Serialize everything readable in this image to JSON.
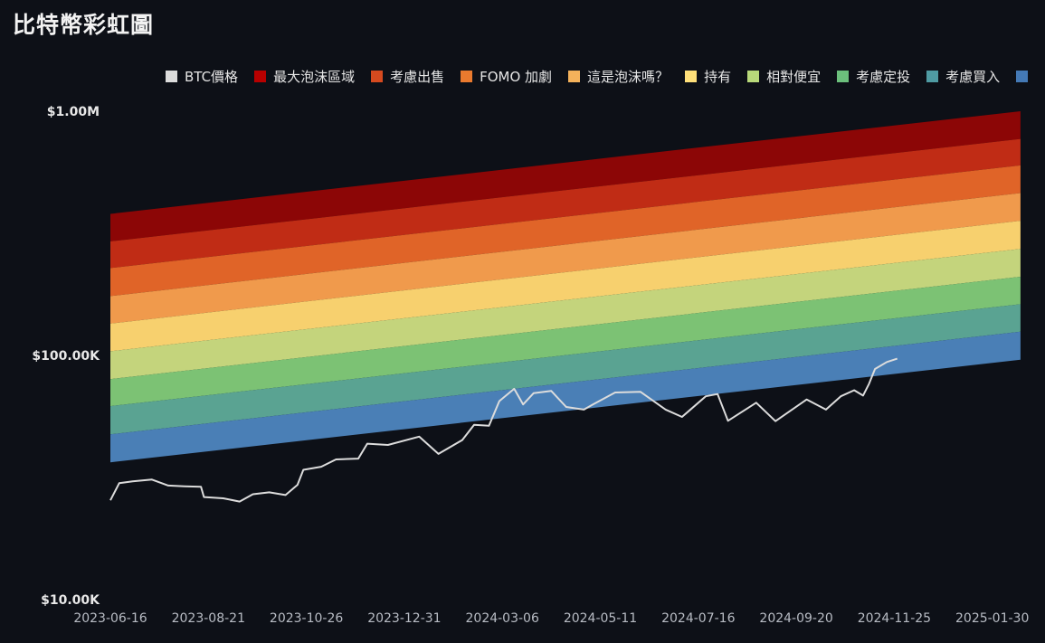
{
  "title": "比特幣彩虹圖",
  "legend": [
    {
      "label": "BTC價格",
      "color": "#dcdcdc"
    },
    {
      "label": "最大泡沫區域",
      "color": "#b80000"
    },
    {
      "label": "考慮出售",
      "color": "#d64a1f"
    },
    {
      "label": "FOMO 加劇",
      "color": "#ea7a2e"
    },
    {
      "label": "這是泡沫嗎？",
      "color": "#f4b25b"
    },
    {
      "label": "持有",
      "color": "#ffe07a"
    },
    {
      "label": "相對便宜",
      "color": "#b8d97a"
    },
    {
      "label": "考慮定投",
      "color": "#6cc07c"
    },
    {
      "label": "考慮買入",
      "color": "#4f9ba3"
    },
    {
      "label": "",
      "color": "#4479b5"
    }
  ],
  "chart_data": {
    "type": "area",
    "y_scale": "log",
    "ylim": [
      10000,
      1000000
    ],
    "y_ticks": [
      {
        "value": 1000000,
        "label": "$1.00M"
      },
      {
        "value": 100000,
        "label": "$100.00K"
      },
      {
        "value": 10000,
        "label": "$10.00K"
      }
    ],
    "x_ticks": [
      "2023-06-16",
      "2023-08-21",
      "2023-10-26",
      "2023-12-31",
      "2024-03-06",
      "2024-05-11",
      "2024-07-16",
      "2024-09-20",
      "2024-11-25",
      "2025-01-30"
    ],
    "bands": {
      "x": [
        "2023-06-16",
        "2025-02-18"
      ],
      "colors": [
        "#8c0606",
        "#c02c15",
        "#e06428",
        "#f09a4c",
        "#f7d06e",
        "#c4d47c",
        "#7cc274",
        "#5aa392",
        "#4a7fb6"
      ],
      "boundaries": [
        [
          380000,
          1000000
        ],
        [
          293000,
          770000
        ],
        [
          228000,
          600000
        ],
        [
          175000,
          462000
        ],
        [
          135000,
          356000
        ],
        [
          104000,
          273000
        ],
        [
          80000,
          210000
        ],
        [
          62000,
          162000
        ],
        [
          47500,
          125000
        ],
        [
          36500,
          96000
        ]
      ]
    },
    "series": [
      {
        "name": "BTC價格",
        "color": "#dcdcdc",
        "points": [
          [
            "2023-06-16",
            25500
          ],
          [
            "2023-06-22",
            30000
          ],
          [
            "2023-07-01",
            30500
          ],
          [
            "2023-07-14",
            31000
          ],
          [
            "2023-07-25",
            29300
          ],
          [
            "2023-08-05",
            29100
          ],
          [
            "2023-08-16",
            29000
          ],
          [
            "2023-08-18",
            26300
          ],
          [
            "2023-08-31",
            26000
          ],
          [
            "2023-09-11",
            25200
          ],
          [
            "2023-09-20",
            27000
          ],
          [
            "2023-10-01",
            27500
          ],
          [
            "2023-10-12",
            26800
          ],
          [
            "2023-10-20",
            29500
          ],
          [
            "2023-10-24",
            34000
          ],
          [
            "2023-11-05",
            35000
          ],
          [
            "2023-11-15",
            37500
          ],
          [
            "2023-11-30",
            37800
          ],
          [
            "2023-12-06",
            43500
          ],
          [
            "2023-12-20",
            43000
          ],
          [
            "2024-01-10",
            46500
          ],
          [
            "2024-01-23",
            39500
          ],
          [
            "2024-02-08",
            45000
          ],
          [
            "2024-02-16",
            52000
          ],
          [
            "2024-02-26",
            51500
          ],
          [
            "2024-03-04",
            65000
          ],
          [
            "2024-03-14",
            73000
          ],
          [
            "2024-03-20",
            63000
          ],
          [
            "2024-03-27",
            70000
          ],
          [
            "2024-04-08",
            71500
          ],
          [
            "2024-04-18",
            61500
          ],
          [
            "2024-04-30",
            60000
          ],
          [
            "2024-05-06",
            63000
          ],
          [
            "2024-05-21",
            70500
          ],
          [
            "2024-06-07",
            71000
          ],
          [
            "2024-06-24",
            60000
          ],
          [
            "2024-07-05",
            56000
          ],
          [
            "2024-07-21",
            68000
          ],
          [
            "2024-07-29",
            69500
          ],
          [
            "2024-08-05",
            54000
          ],
          [
            "2024-08-24",
            64000
          ],
          [
            "2024-09-06",
            53800
          ],
          [
            "2024-09-27",
            66000
          ],
          [
            "2024-10-10",
            60000
          ],
          [
            "2024-10-20",
            68000
          ],
          [
            "2024-10-29",
            72000
          ],
          [
            "2024-11-04",
            68500
          ],
          [
            "2024-11-08",
            76500
          ],
          [
            "2024-11-12",
            88000
          ],
          [
            "2024-11-20",
            94000
          ],
          [
            "2024-11-27",
            97000
          ]
        ]
      }
    ]
  }
}
